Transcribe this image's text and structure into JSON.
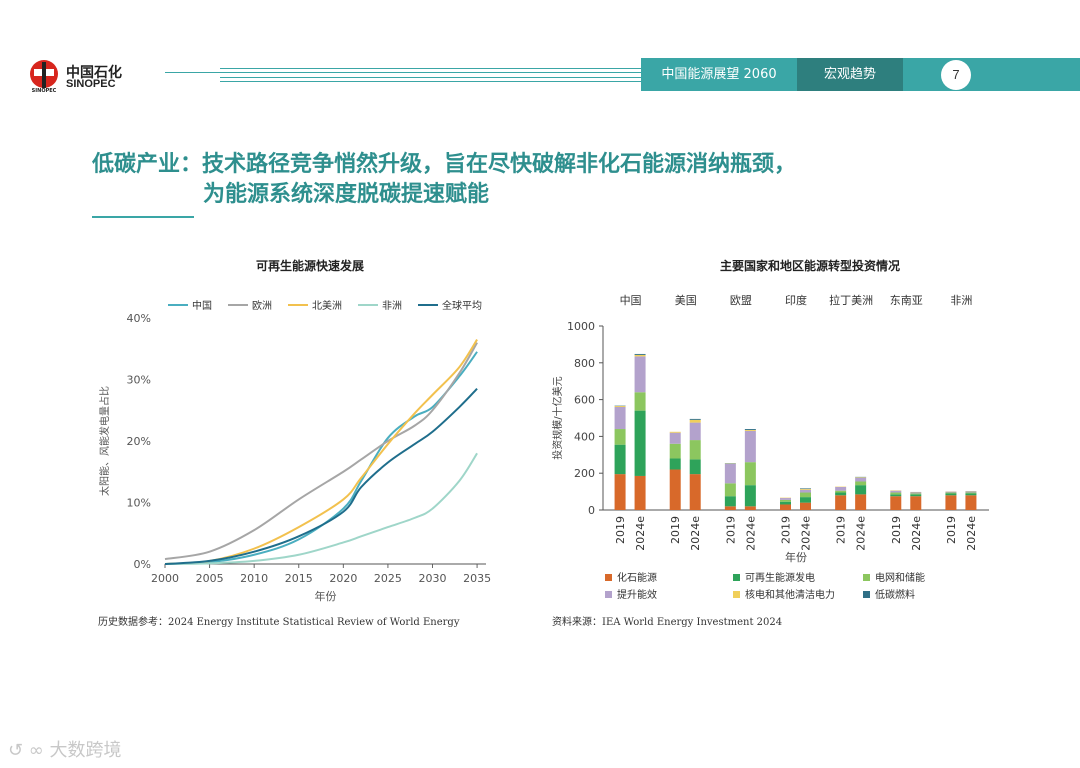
{
  "header": {
    "brand_cn": "中国石化",
    "brand_en": "SINOPEC",
    "report": "中国能源展望 2060",
    "section": "宏观趋势",
    "page": "7"
  },
  "title": {
    "line1": "低碳产业：技术路径竞争悄然升级，旨在尽快破解非化石能源消纳瓶颈，",
    "line2": "为能源系统深度脱碳提速赋能"
  },
  "notes": {
    "left": "历史数据参考：2024 Energy Institute Statistical Review of World Energy",
    "right": "资料来源：IEA World Energy Investment 2024"
  },
  "watermark": "大数跨境",
  "chart_data": [
    {
      "type": "line",
      "title": "可再生能源快速发展",
      "xlabel": "年份",
      "ylabel": "太阳能、风能发电量占比",
      "xlim": [
        2000,
        2036
      ],
      "ylim": [
        0,
        40
      ],
      "x_ticks": [
        "2000",
        "2005",
        "2010",
        "2015",
        "2020",
        "2025",
        "2030",
        "2035"
      ],
      "y_ticks": [
        "0%",
        "10%",
        "20%",
        "30%",
        "40%"
      ],
      "legend_position": "top",
      "x": [
        2000,
        2005,
        2010,
        2015,
        2020,
        2022,
        2025,
        2028,
        2030,
        2033,
        2035
      ],
      "series": [
        {
          "name": "中国",
          "color": "#4aaec0",
          "values": [
            0,
            0.3,
            1.5,
            4,
            9,
            13.5,
            20.5,
            24,
            25.5,
            30.5,
            34.5
          ]
        },
        {
          "name": "欧洲",
          "color": "#a6a6a6",
          "values": [
            0.8,
            2,
            5.5,
            10.5,
            15,
            17,
            20,
            22.5,
            25,
            31,
            36
          ]
        },
        {
          "name": "北美洲",
          "color": "#f2c14e",
          "values": [
            0,
            0.5,
            2.5,
            6,
            10.5,
            14,
            19.5,
            24.5,
            27.5,
            32,
            36.5
          ]
        },
        {
          "name": "非洲",
          "color": "#9fd6c9",
          "values": [
            0,
            0.1,
            0.5,
            1.5,
            3.5,
            4.5,
            6,
            7.5,
            9,
            13.5,
            18
          ]
        },
        {
          "name": "全球平均",
          "color": "#1f6e8c",
          "values": [
            0,
            0.5,
            2,
            4.5,
            8.5,
            12.5,
            16.5,
            19.5,
            21.5,
            25.5,
            28.5
          ]
        }
      ]
    },
    {
      "type": "bar",
      "stacked": true,
      "title": "主要国家和地区能源转型投资情况",
      "xlabel": "年份",
      "ylabel": "投资规模/十亿美元",
      "ylim": [
        0,
        1000
      ],
      "y_ticks": [
        "0",
        "200",
        "400",
        "600",
        "800",
        "1000"
      ],
      "groups": [
        {
          "name": "中国",
          "categories": [
            "2019",
            "2024e"
          ]
        },
        {
          "name": "美国",
          "categories": [
            "2019",
            "2024e"
          ]
        },
        {
          "name": "欧盟",
          "categories": [
            "2019",
            "2024e"
          ]
        },
        {
          "name": "印度",
          "categories": [
            "2019",
            "2024e"
          ]
        },
        {
          "name": "拉丁美洲",
          "categories": [
            "2019",
            "2024e"
          ]
        },
        {
          "name": "东南亚",
          "categories": [
            "2019",
            "2024e"
          ]
        },
        {
          "name": "非洲",
          "categories": [
            "2019",
            "2024e"
          ]
        }
      ],
      "series": [
        {
          "name": "化石能源",
          "color": "#d8692a",
          "values": [
            195,
            185,
            220,
            195,
            20,
            20,
            30,
            40,
            80,
            85,
            75,
            75,
            80,
            80
          ]
        },
        {
          "name": "可再生能源发电",
          "color": "#2ea35a",
          "values": [
            160,
            355,
            60,
            80,
            55,
            115,
            15,
            30,
            15,
            50,
            10,
            10,
            10,
            10
          ]
        },
        {
          "name": "电网和储能",
          "color": "#8cc65f",
          "values": [
            85,
            100,
            80,
            105,
            70,
            125,
            10,
            25,
            10,
            20,
            10,
            5,
            5,
            5
          ]
        },
        {
          "name": "提升能效",
          "color": "#b3a2cc",
          "values": [
            120,
            195,
            60,
            95,
            105,
            170,
            10,
            15,
            20,
            20,
            10,
            5,
            5,
            5
          ]
        },
        {
          "name": "核电和其他清洁电力",
          "color": "#f0cf5a",
          "values": [
            5,
            8,
            5,
            15,
            2,
            5,
            2,
            5,
            2,
            3,
            2,
            2,
            1,
            2
          ]
        },
        {
          "name": "低碳燃料",
          "color": "#2f6f86",
          "values": [
            2,
            5,
            0,
            5,
            2,
            5,
            0,
            3,
            0,
            2,
            0,
            1,
            0,
            1
          ]
        }
      ],
      "legend_position": "bottom"
    }
  ]
}
